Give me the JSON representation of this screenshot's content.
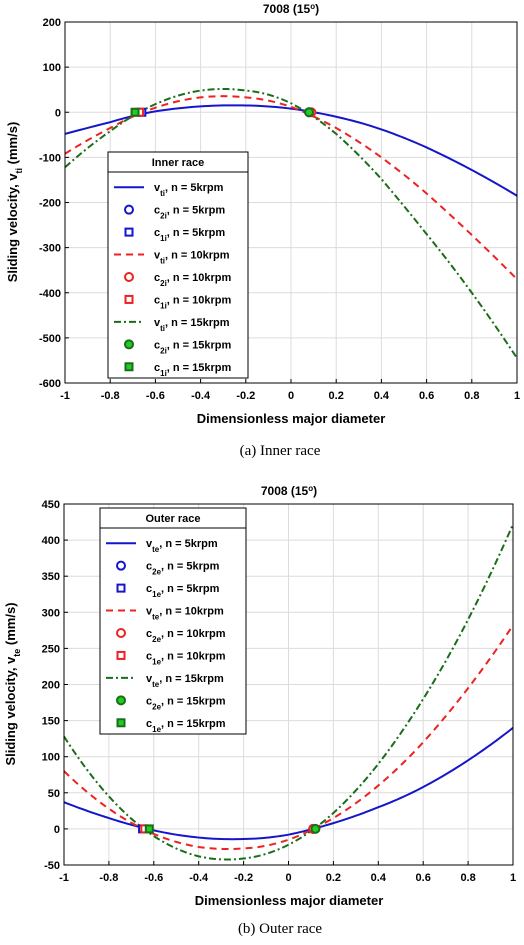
{
  "colors": {
    "blue": "#1515cc",
    "red": "#ee2222",
    "green": "#1a6e1a",
    "green_fill": "#22cc22",
    "red_fill": "#ff6666",
    "blue_fill": "#ffffff"
  },
  "chart_data": [
    {
      "type": "line",
      "title": "7008 (15°)",
      "title_main": "7008 (15",
      "title_sup": "o",
      "title_end": ")",
      "xlabel": "Dimensionless major diameter",
      "ylabel_main": "Sliding velocity, v",
      "ylabel_sub": "ti",
      "ylabel_unit": " (mm/s)",
      "xlim": [
        -1,
        1
      ],
      "ylim": [
        -600,
        200
      ],
      "x_ticks": [
        -1,
        -0.8,
        -0.6,
        -0.4,
        -0.2,
        0,
        0.2,
        0.4,
        0.6,
        0.8,
        1
      ],
      "y_ticks": [
        -600,
        -500,
        -400,
        -300,
        -200,
        -100,
        0,
        100,
        200
      ],
      "x_tick_labels": [
        "-1",
        "-0.8",
        "-0.6",
        "-0.4",
        "-0.2",
        "0",
        "0.2",
        "0.4",
        "0.6",
        "0.8",
        "1"
      ],
      "y_tick_labels": [
        "-600",
        "-500",
        "-400",
        "-300",
        "-200",
        "-100",
        "0",
        "100",
        "200"
      ],
      "grid": true,
      "legend_title": "Inner race",
      "legend_position": "lower-left",
      "caption": "(a) Inner race",
      "series": [
        {
          "name": "v_ti, n = 5krpm",
          "label_main": "v",
          "label_sub": "ti",
          "label_rest": ", n = 5krpm",
          "color": "#1515cc",
          "dash": "solid",
          "x": [
            -1,
            -0.8,
            -0.6,
            -0.4,
            -0.2,
            0,
            0.2,
            0.4,
            0.6,
            0.8,
            1
          ],
          "y": [
            -48,
            -22,
            2,
            13,
            15,
            8,
            -10,
            -38,
            -78,
            -128,
            -185
          ]
        },
        {
          "name": "v_ti, n = 10krpm",
          "label_main": "v",
          "label_sub": "ti",
          "label_rest": ", n = 10krpm",
          "color": "#ee2222",
          "dash": "dashed",
          "x": [
            -1,
            -0.8,
            -0.6,
            -0.4,
            -0.2,
            0,
            0.2,
            0.4,
            0.6,
            0.8,
            1
          ],
          "y": [
            -92,
            -35,
            10,
            33,
            33,
            12,
            -35,
            -100,
            -180,
            -272,
            -370
          ]
        },
        {
          "name": "v_ti, n = 15krpm",
          "label_main": "v",
          "label_sub": "ti",
          "label_rest": ", n = 15krpm",
          "color": "#1a6e1a",
          "dash": "dashdot",
          "x": [
            -1,
            -0.8,
            -0.6,
            -0.4,
            -0.2,
            0,
            0.2,
            0.4,
            0.6,
            0.8,
            1
          ],
          "y": [
            -122,
            -42,
            18,
            48,
            48,
            20,
            -48,
            -148,
            -270,
            -400,
            -545
          ]
        }
      ],
      "markers": [
        {
          "name": "c_2i, n = 5krpm",
          "label_main": "c",
          "label_sub": "2i",
          "label_rest": ", n = 5krpm",
          "shape": "circle",
          "color": "#1515cc",
          "fill": "#ffffff",
          "x": 0.08,
          "y": 0
        },
        {
          "name": "c_1i, n = 5krpm",
          "label_main": "c",
          "label_sub": "1i",
          "label_rest": ", n = 5krpm",
          "shape": "square",
          "color": "#1515cc",
          "fill": "#ffffff",
          "x": -0.66,
          "y": 0
        },
        {
          "name": "c_2i, n = 10krpm",
          "label_main": "c",
          "label_sub": "2i",
          "label_rest": ", n = 10krpm",
          "shape": "circle",
          "color": "#ee2222",
          "fill": "#ffffff",
          "x": 0.09,
          "y": 0
        },
        {
          "name": "c_1i, n = 10krpm",
          "label_main": "c",
          "label_sub": "1i",
          "label_rest": ", n = 10krpm",
          "shape": "square",
          "color": "#ee2222",
          "fill": "#ffffff",
          "x": -0.67,
          "y": 0
        },
        {
          "name": "c_2i, n = 15krpm",
          "label_main": "c",
          "label_sub": "2i",
          "label_rest": ", n = 15krpm",
          "shape": "circle",
          "color": "#1a6e1a",
          "fill": "#22cc22",
          "x": 0.08,
          "y": 0
        },
        {
          "name": "c_1i, n = 15krpm",
          "label_main": "c",
          "label_sub": "1i",
          "label_rest": ", n = 15krpm",
          "shape": "square",
          "color": "#1a6e1a",
          "fill": "#22cc22",
          "x": -0.69,
          "y": 0
        }
      ]
    },
    {
      "type": "line",
      "title": "7008 (15°)",
      "title_main": "7008 (15",
      "title_sup": "o",
      "title_end": ")",
      "xlabel": "Dimensionless major diameter",
      "ylabel_main": "Sliding velocity, v",
      "ylabel_sub": "te",
      "ylabel_unit": " (mm/s)",
      "xlim": [
        -1,
        1
      ],
      "ylim": [
        -50,
        450
      ],
      "x_ticks": [
        -1,
        -0.8,
        -0.6,
        -0.4,
        -0.2,
        0,
        0.2,
        0.4,
        0.6,
        0.8,
        1
      ],
      "y_ticks": [
        -50,
        0,
        50,
        100,
        150,
        200,
        250,
        300,
        350,
        400,
        450
      ],
      "x_tick_labels": [
        "-1",
        "-0.8",
        "-0.6",
        "-0.4",
        "-0.2",
        "0",
        "0.2",
        "0.4",
        "0.6",
        "0.8",
        "1"
      ],
      "y_tick_labels": [
        "-50",
        "0",
        "50",
        "100",
        "150",
        "200",
        "250",
        "300",
        "350",
        "400",
        "450"
      ],
      "grid": true,
      "legend_title": "Outer race",
      "legend_position": "upper-left",
      "caption": "(b) Outer race",
      "series": [
        {
          "name": "v_te, n = 5krpm",
          "label_main": "v",
          "label_sub": "te",
          "label_rest": ", n = 5krpm",
          "color": "#1515cc",
          "dash": "solid",
          "x": [
            -1,
            -0.8,
            -0.6,
            -0.4,
            -0.2,
            0,
            0.2,
            0.4,
            0.6,
            0.8,
            1
          ],
          "y": [
            37,
            15,
            -2,
            -12,
            -14,
            -8,
            8,
            30,
            58,
            95,
            140
          ]
        },
        {
          "name": "v_te, n = 10krpm",
          "label_main": "v",
          "label_sub": "te",
          "label_rest": ", n = 10krpm",
          "color": "#ee2222",
          "dash": "dashed",
          "x": [
            -1,
            -0.8,
            -0.6,
            -0.4,
            -0.2,
            0,
            0.2,
            0.4,
            0.6,
            0.8,
            1
          ],
          "y": [
            80,
            28,
            -7,
            -25,
            -27,
            -15,
            15,
            60,
            120,
            195,
            282
          ]
        },
        {
          "name": "v_te, n = 15krpm",
          "label_main": "v",
          "label_sub": "te",
          "label_rest": ", n = 15krpm",
          "color": "#1a6e1a",
          "dash": "dashdot",
          "x": [
            -1,
            -0.8,
            -0.6,
            -0.4,
            -0.2,
            0,
            0.2,
            0.4,
            0.6,
            0.8,
            1
          ],
          "y": [
            128,
            45,
            -10,
            -38,
            -41,
            -22,
            22,
            90,
            180,
            290,
            422
          ]
        }
      ],
      "markers": [
        {
          "name": "c_2e, n = 5krpm",
          "label_main": "c",
          "label_sub": "2e",
          "label_rest": ", n = 5krpm",
          "shape": "circle",
          "color": "#1515cc",
          "fill": "#ffffff",
          "x": 0.11,
          "y": 0
        },
        {
          "name": "c_1e, n = 5krpm",
          "label_main": "c",
          "label_sub": "1e",
          "label_rest": ", n = 5krpm",
          "shape": "square",
          "color": "#1515cc",
          "fill": "#ffffff",
          "x": -0.65,
          "y": 0
        },
        {
          "name": "c_2e, n = 10krpm",
          "label_main": "c",
          "label_sub": "2e",
          "label_rest": ", n = 10krpm",
          "shape": "circle",
          "color": "#ee2222",
          "fill": "#ffffff",
          "x": 0.11,
          "y": 0
        },
        {
          "name": "c_1e, n = 10krpm",
          "label_main": "c",
          "label_sub": "1e",
          "label_rest": ", n = 10krpm",
          "shape": "square",
          "color": "#ee2222",
          "fill": "#ffffff",
          "x": -0.64,
          "y": 0
        },
        {
          "name": "c_2e, n = 15krpm",
          "label_main": "c",
          "label_sub": "2e",
          "label_rest": ", n = 15krpm",
          "shape": "circle",
          "color": "#1a6e1a",
          "fill": "#22cc22",
          "x": 0.12,
          "y": 0
        },
        {
          "name": "c_1e, n = 15krpm",
          "label_main": "c",
          "label_sub": "1e",
          "label_rest": ", n = 15krpm",
          "shape": "square",
          "color": "#1a6e1a",
          "fill": "#22cc22",
          "x": -0.62,
          "y": 0
        }
      ]
    }
  ]
}
